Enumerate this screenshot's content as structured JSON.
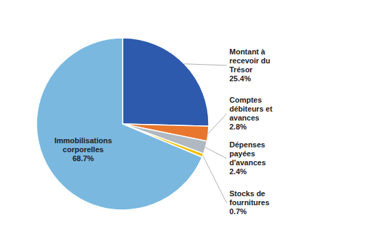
{
  "chart_data": {
    "type": "pie",
    "categories": [
      "Montant à\nrecevoir du\nTrésor",
      "Comptes\ndébiteurs et\navances",
      "Dépenses\npayées\nd'avances",
      "Stocks de\nfournitures",
      "Immobilisations\ncorporelles"
    ],
    "values": [
      25.4,
      2.8,
      2.4,
      0.7,
      68.7
    ],
    "value_labels": [
      "25.4%",
      "2.8%",
      "2.4%",
      "0.7%",
      "68.7%"
    ],
    "colors": [
      "#2e5aad",
      "#e8762c",
      "#b0b8c1",
      "#f0c000",
      "#7ab8e0"
    ],
    "data_labels": true
  }
}
